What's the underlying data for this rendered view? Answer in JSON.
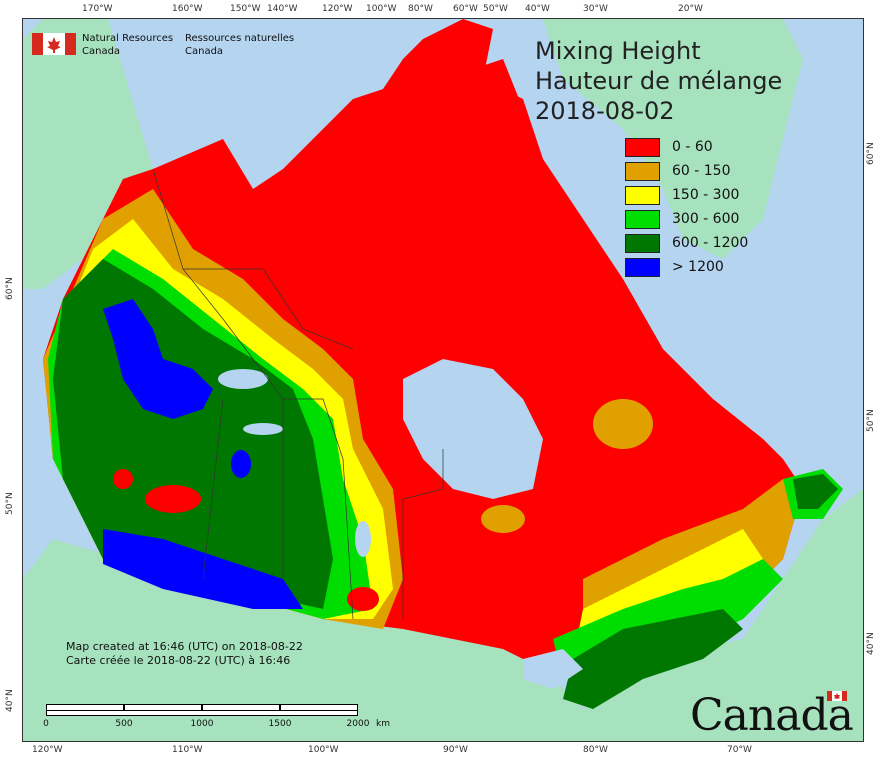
{
  "map": {
    "title_line1": "Mixing Height",
    "title_line2": "Hauteur de mélange",
    "date": "2018-08-02",
    "legend": [
      {
        "label": "0 - 60",
        "color": "#ff0000"
      },
      {
        "label": "60 - 150",
        "color": "#e0a000"
      },
      {
        "label": "150 - 300",
        "color": "#ffff00"
      },
      {
        "label": "300 - 600",
        "color": "#00dd00"
      },
      {
        "label": "600 - 1200",
        "color": "#007700"
      },
      {
        "label": "> 1200",
        "color": "#0000ff"
      }
    ],
    "colors": {
      "ocean": "#b4d4f0",
      "land_outside": "#a6e2be",
      "boundary": "#333333"
    }
  },
  "agency": {
    "name_en_line1": "Natural Resources",
    "name_en_line2": "Canada",
    "name_fr_line1": "Ressources naturelles",
    "name_fr_line2": "Canada"
  },
  "created": {
    "line_en": "Map created at 16:46 (UTC) on 2018-08-22",
    "line_fr": "Carte créée le 2018-08-22 (UTC) à 16:46"
  },
  "scale": {
    "ticks": [
      "0",
      "500",
      "1000",
      "1500",
      "2000"
    ],
    "unit": "km"
  },
  "graticule": {
    "top_longitudes": [
      "170°W",
      "160°W",
      "150°W",
      "140°W",
      "120°W",
      "100°W",
      "80°W",
      "60°W",
      "50°W",
      "40°W",
      "30°W",
      "20°W"
    ],
    "bottom_longitudes": [
      "120°W",
      "110°W",
      "100°W",
      "90°W",
      "80°W",
      "70°W"
    ],
    "left_latitudes": [
      "60°N",
      "50°N",
      "40°N"
    ],
    "right_latitudes": [
      "60°N",
      "50°N",
      "40°N"
    ]
  },
  "wordmark": "Canada"
}
